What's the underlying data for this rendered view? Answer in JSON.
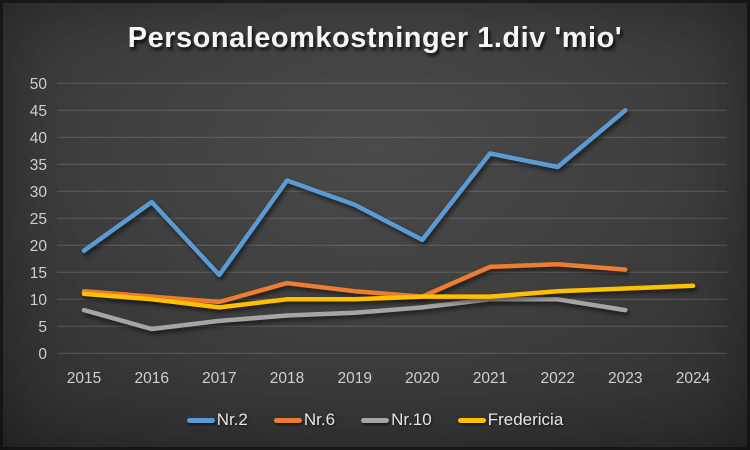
{
  "title": "Personaleomkostninger 1.div 'mio'",
  "colors": {
    "background": "#3d3d3d",
    "axis_text": "#cfcfcf",
    "legend_text": "#e6e6e6",
    "gridline": "rgba(255,255,255,0.17)",
    "series_nr2": "#5B9BD5",
    "series_nr6": "#ED7D31",
    "series_nr10": "#A5A5A5",
    "series_fredericia": "#FFC000"
  },
  "chart_data": {
    "type": "line",
    "title": "Personaleomkostninger 1.div 'mio'",
    "categories": [
      "2015",
      "2016",
      "2017",
      "2018",
      "2019",
      "2020",
      "2021",
      "2022",
      "2023",
      "2024"
    ],
    "series": [
      {
        "name": "Nr.2",
        "color": "#5B9BD5",
        "values": [
          19,
          28,
          14.5,
          32,
          27.5,
          21,
          37,
          34.5,
          45,
          null
        ]
      },
      {
        "name": "Nr.6",
        "color": "#ED7D31",
        "values": [
          11.5,
          10.5,
          9.5,
          13,
          11.5,
          10.5,
          16,
          16.5,
          15.5,
          null
        ]
      },
      {
        "name": "Nr.10",
        "color": "#A5A5A5",
        "values": [
          8,
          4.5,
          6,
          7,
          7.5,
          8.5,
          10,
          10,
          8,
          null
        ]
      },
      {
        "name": "Fredericia",
        "color": "#FFC000",
        "values": [
          11,
          10,
          8.5,
          10,
          10,
          10.5,
          10.5,
          11.5,
          12,
          12.5
        ]
      }
    ],
    "xlabel": "",
    "ylabel": "",
    "ylim": [
      0,
      50
    ],
    "ytick_step": 5,
    "y_ticks": [
      0,
      5,
      10,
      15,
      20,
      25,
      30,
      35,
      40,
      45,
      50
    ],
    "grid": true,
    "legend_position": "bottom",
    "legend_entries": [
      "Nr.2",
      "Nr.6",
      "Nr.10",
      "Fredericia"
    ]
  }
}
